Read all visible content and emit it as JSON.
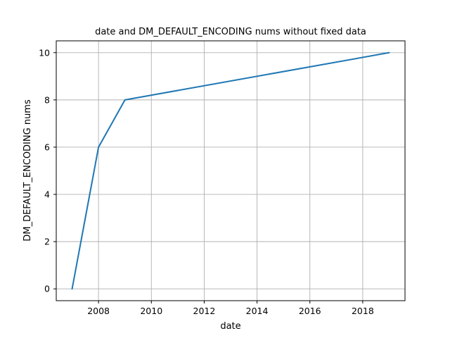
{
  "chart_data": {
    "type": "line",
    "title": "date and DM_DEFAULT_ENCODING nums without fixed data",
    "xlabel": "date",
    "ylabel": "DM_DEFAULT_ENCODING nums",
    "x": [
      2007,
      2008,
      2009,
      2019
    ],
    "series": [
      {
        "values": [
          0,
          6,
          8,
          10
        ],
        "color": "#1f77b4"
      }
    ],
    "xlim": [
      2006.4,
      2019.6
    ],
    "ylim": [
      -0.5,
      10.5
    ],
    "xticks": [
      2008,
      2010,
      2012,
      2014,
      2016,
      2018
    ],
    "yticks": [
      0,
      2,
      4,
      6,
      8,
      10
    ],
    "grid": true,
    "legend": "none"
  }
}
